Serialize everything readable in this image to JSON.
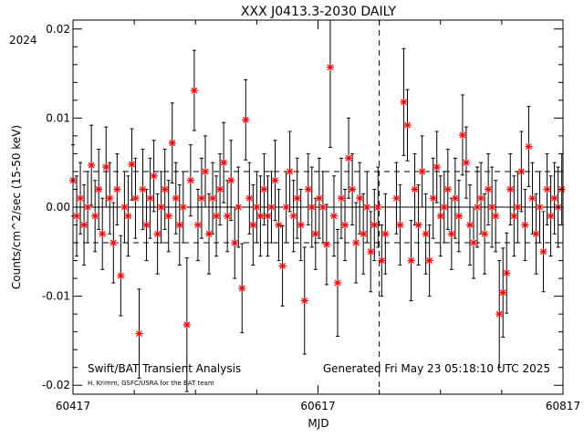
{
  "chart_data": {
    "type": "scatter",
    "title": "XXX J0413.3-2030 DAILY",
    "year_label": "2024",
    "xlabel": "MJD",
    "ylabel": "Counts/cm^2/sec (15-50 keV)",
    "xlim": [
      60417,
      60817
    ],
    "ylim": [
      -0.021,
      0.021
    ],
    "x_ticks": [
      60417,
      60617,
      60817
    ],
    "x_tick_labels": [
      "60417",
      "60617",
      "60817"
    ],
    "y_ticks": [
      -0.02,
      -0.01,
      0.0,
      0.01,
      0.02
    ],
    "y_tick_labels": [
      "-0.02",
      "-0.01",
      "0.00",
      "0.01",
      "0.02"
    ],
    "zero_line": 0.0,
    "reference_lines_y": [
      0.004,
      -0.004
    ],
    "marker_date_mjd": 60667,
    "gap_mjd": [
      60673,
      60680
    ],
    "marker_color": "#ff0000",
    "errorbar_color": "#000000",
    "footer_left": "Swift/BAT Transient Analysis",
    "footer_credit": "H. Krimm, GSFC/USRA for the BAT team",
    "footer_right": "Generated Fri May 23 05:18:10 UTC 2025",
    "series": [
      {
        "x": [
          60417,
          60420,
          60423,
          60426,
          60429,
          60432,
          60435,
          60438,
          60441,
          60444,
          60447,
          60450,
          60453,
          60456,
          60459,
          60462,
          60465,
          60468,
          60471,
          60474,
          60477,
          60480,
          60483,
          60486,
          60489,
          60492,
          60495,
          60498,
          60501,
          60504,
          60507,
          60510,
          60513,
          60516,
          60519,
          60522,
          60525,
          60528,
          60531,
          60534,
          60537,
          60540,
          60543,
          60546,
          60549,
          60552,
          60555,
          60558,
          60561,
          60564,
          60567,
          60570,
          60573,
          60576,
          60579,
          60582,
          60585,
          60588,
          60591,
          60594,
          60597,
          60600,
          60603,
          60606,
          60609,
          60612,
          60615,
          60618,
          60621,
          60624,
          60627,
          60630,
          60633,
          60636,
          60639,
          60642,
          60645,
          60648,
          60651,
          60654,
          60657,
          60660,
          60663,
          60666,
          60669,
          60672,
          60681,
          60684,
          60687,
          60690,
          60693,
          60696,
          60699,
          60702,
          60705,
          60708,
          60711,
          60714,
          60717,
          60720,
          60723,
          60726,
          60729,
          60732,
          60735,
          60738,
          60741,
          60744,
          60747,
          60750,
          60753,
          60756,
          60759,
          60762,
          60765,
          60768,
          60771,
          60774,
          60777,
          60780,
          60783,
          60786,
          60789,
          60792,
          60795,
          60798,
          60801,
          60804,
          60807,
          60810,
          60813,
          60816
        ],
        "y": [
          0.003,
          -0.001,
          0.001,
          -0.002,
          0.0,
          0.0047,
          -0.001,
          0.002,
          -0.003,
          0.0045,
          0.001,
          -0.004,
          0.002,
          -0.0077,
          0.0,
          -0.001,
          0.0048,
          0.001,
          -0.0142,
          0.002,
          -0.002,
          0.001,
          0.0035,
          -0.003,
          0.0,
          0.002,
          -0.001,
          0.0072,
          0.001,
          -0.002,
          0.0,
          -0.0132,
          0.003,
          0.0131,
          -0.002,
          0.001,
          0.004,
          -0.003,
          0.001,
          -0.001,
          0.002,
          0.005,
          -0.001,
          0.003,
          -0.004,
          0.0,
          -0.0091,
          0.0098,
          0.001,
          -0.002,
          0.0,
          -0.001,
          0.002,
          -0.001,
          0.0,
          0.003,
          -0.002,
          -0.0066,
          0.0,
          0.004,
          -0.001,
          0.001,
          -0.002,
          -0.0105,
          0.002,
          0.0,
          -0.003,
          0.001,
          0.0,
          -0.0042,
          0.0157,
          -0.001,
          -0.0085,
          0.001,
          -0.002,
          0.0055,
          0.002,
          -0.004,
          0.001,
          -0.003,
          0.0,
          -0.005,
          -0.002,
          0.0,
          -0.006,
          -0.003,
          0.001,
          -0.002,
          0.0118,
          0.0092,
          -0.006,
          0.002,
          -0.002,
          0.004,
          -0.003,
          -0.006,
          0.001,
          0.0045,
          -0.001,
          0.0,
          0.002,
          -0.003,
          0.001,
          -0.001,
          0.0081,
          0.005,
          -0.002,
          -0.004,
          0.0,
          0.001,
          -0.003,
          0.002,
          0.0,
          -0.001,
          -0.012,
          -0.0096,
          -0.0074,
          0.002,
          -0.001,
          0.0,
          0.004,
          -0.002,
          0.0068,
          0.001,
          -0.003,
          0.0,
          -0.005,
          0.002,
          -0.001,
          0.001,
          0.0,
          0.002
        ],
        "yerr": [
          0.004,
          0.0045,
          0.004,
          0.0045,
          0.004,
          0.0045,
          0.004,
          0.0045,
          0.004,
          0.0045,
          0.004,
          0.0045,
          0.004,
          0.0045,
          0.004,
          0.0045,
          0.004,
          0.0045,
          0.005,
          0.0045,
          0.004,
          0.0045,
          0.004,
          0.0045,
          0.004,
          0.0045,
          0.004,
          0.0045,
          0.004,
          0.0045,
          0.004,
          0.0075,
          0.004,
          0.0045,
          0.004,
          0.0045,
          0.004,
          0.0045,
          0.004,
          0.0045,
          0.004,
          0.0045,
          0.004,
          0.0045,
          0.004,
          0.0045,
          0.005,
          0.0045,
          0.004,
          0.0045,
          0.004,
          0.0045,
          0.004,
          0.0045,
          0.004,
          0.0045,
          0.004,
          0.0045,
          0.004,
          0.0045,
          0.004,
          0.0045,
          0.004,
          0.006,
          0.004,
          0.0045,
          0.004,
          0.0045,
          0.004,
          0.0045,
          0.009,
          0.0045,
          0.006,
          0.0045,
          0.004,
          0.0045,
          0.004,
          0.0045,
          0.004,
          0.0045,
          0.004,
          0.0045,
          0.004,
          0.0045,
          0.004,
          0.0045,
          0.004,
          0.0045,
          0.006,
          0.004,
          0.0045,
          0.004,
          0.0045,
          0.004,
          0.0045,
          0.004,
          0.0045,
          0.004,
          0.0045,
          0.004,
          0.0045,
          0.004,
          0.0045,
          0.004,
          0.0045,
          0.004,
          0.0045,
          0.004,
          0.0045,
          0.004,
          0.0045,
          0.004,
          0.0045,
          0.004,
          0.006,
          0.005,
          0.0045,
          0.004,
          0.0045,
          0.004,
          0.0045,
          0.004,
          0.0045,
          0.004,
          0.0045,
          0.004,
          0.0045,
          0.004,
          0.0045,
          0.004,
          0.0045,
          0.004
        ]
      }
    ]
  }
}
